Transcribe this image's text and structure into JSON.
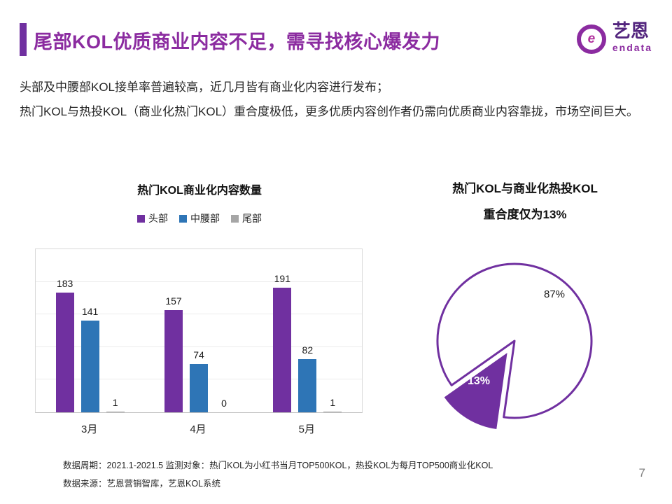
{
  "header": {
    "title": "尾部KOL优质商业内容不足，需寻找核心爆发力",
    "logo": {
      "icon_letter": "e",
      "brand_cn": "艺恩",
      "brand_en": "endata"
    }
  },
  "intro": {
    "line1": "头部及中腰部KOL接单率普遍较高，近几月皆有商业化内容进行发布；",
    "line2": "热门KOL与热投KOL（商业化热门KOL）重合度极低，更多优质内容创作者仍需向优质商业内容靠拢，市场空间巨大。"
  },
  "chart_data": [
    {
      "type": "bar",
      "title": "热门KOL商业化内容数量",
      "categories": [
        "3月",
        "4月",
        "5月"
      ],
      "series": [
        {
          "name": "头部",
          "color": "#7030A0",
          "values": [
            183,
            157,
            191
          ]
        },
        {
          "name": "中腰部",
          "color": "#2E75B6",
          "values": [
            141,
            74,
            82
          ]
        },
        {
          "name": "尾部",
          "color": "#A6A6A6",
          "values": [
            1,
            0,
            1
          ]
        }
      ],
      "ylim": [
        0,
        250
      ],
      "y_axis_visible": false,
      "grid": true,
      "legend_position": "top",
      "data_labels": true
    },
    {
      "type": "pie",
      "title_line1": "热门KOL与商业化热投KOL",
      "title_line2": "重合度仅为13%",
      "slices": [
        {
          "label": "87%",
          "value": 87,
          "color": "#FFFFFF",
          "outline": "#7030A0"
        },
        {
          "label": "13%",
          "value": 13,
          "color": "#7030A0",
          "exploded": true
        }
      ]
    }
  ],
  "footer": {
    "line1": "数据周期：2021.1-2021.5 监测对象：热门KOL为小红书当月TOP500KOL，热投KOL为每月TOP500商业化KOL",
    "line2": "数据来源：艺恩营销智库，艺恩KOL系统",
    "page_number": "7"
  },
  "colors": {
    "accent_purple": "#7030A0",
    "title_purple": "#8B2BA0",
    "bar_blue": "#2E75B6",
    "bar_gray": "#A6A6A6"
  }
}
